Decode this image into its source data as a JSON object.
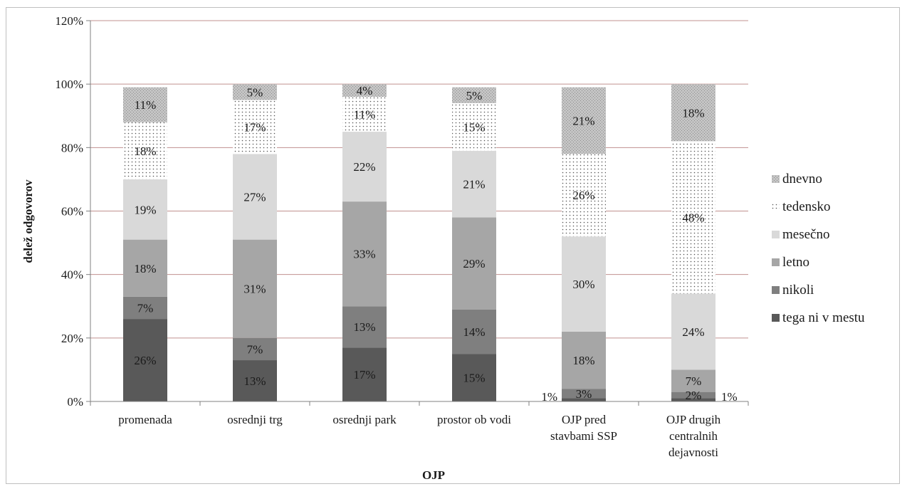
{
  "chart_data": {
    "type": "bar",
    "stacked": true,
    "title": "",
    "xlabel": "OJP",
    "ylabel": "delež odgovorov",
    "ylim": [
      0,
      120
    ],
    "yticks": [
      "0%",
      "20%",
      "40%",
      "60%",
      "80%",
      "100%",
      "120%"
    ],
    "grid": true,
    "legend_position": "right",
    "categories": [
      [
        "promenada"
      ],
      [
        "osrednji trg"
      ],
      [
        "osrednji park"
      ],
      [
        "prostor ob vodi"
      ],
      [
        "OJP pred",
        "stavbami SSP"
      ],
      [
        "OJP drugih",
        "centralnih",
        "dejavnosti"
      ]
    ],
    "series": [
      {
        "name": "tega ni v mestu",
        "color": "#595959",
        "pattern": "solid",
        "values": [
          26,
          13,
          17,
          15,
          1,
          1
        ],
        "labels": [
          "26%",
          "13%",
          "17%",
          "15%",
          "1%",
          "1%"
        ]
      },
      {
        "name": "nikoli",
        "color": "#7f7f7f",
        "pattern": "solid",
        "values": [
          7,
          7,
          13,
          14,
          3,
          2
        ],
        "labels": [
          "7%",
          "7%",
          "13%",
          "14%",
          "3%",
          "2%"
        ]
      },
      {
        "name": "letno",
        "color": "#a6a6a6",
        "pattern": "solid",
        "values": [
          18,
          31,
          33,
          29,
          18,
          7
        ],
        "labels": [
          "18%",
          "31%",
          "33%",
          "29%",
          "18%",
          "7%"
        ]
      },
      {
        "name": "mesečno",
        "color": "#d9d9d9",
        "pattern": "solid",
        "values": [
          19,
          27,
          22,
          21,
          30,
          24
        ],
        "labels": [
          "19%",
          "27%",
          "22%",
          "21%",
          "30%",
          "24%"
        ]
      },
      {
        "name": "tedensko",
        "color": "#ffffff",
        "pattern": "dots",
        "values": [
          18,
          17,
          11,
          15,
          26,
          48
        ],
        "labels": [
          "18%",
          "17%",
          "11%",
          "15%",
          "26%",
          "48%"
        ]
      },
      {
        "name": "dnevno",
        "color": "#bfbfbf",
        "pattern": "speckle",
        "values": [
          11,
          5,
          4,
          5,
          21,
          18
        ],
        "labels": [
          "11%",
          "5%",
          "4%",
          "5%",
          "21%",
          "18%"
        ]
      }
    ],
    "legend_order": [
      "dnevno",
      "tedensko",
      "mesečno",
      "letno",
      "nikoli",
      "tega ni v mestu"
    ],
    "gridline_color": "#c0908f"
  }
}
